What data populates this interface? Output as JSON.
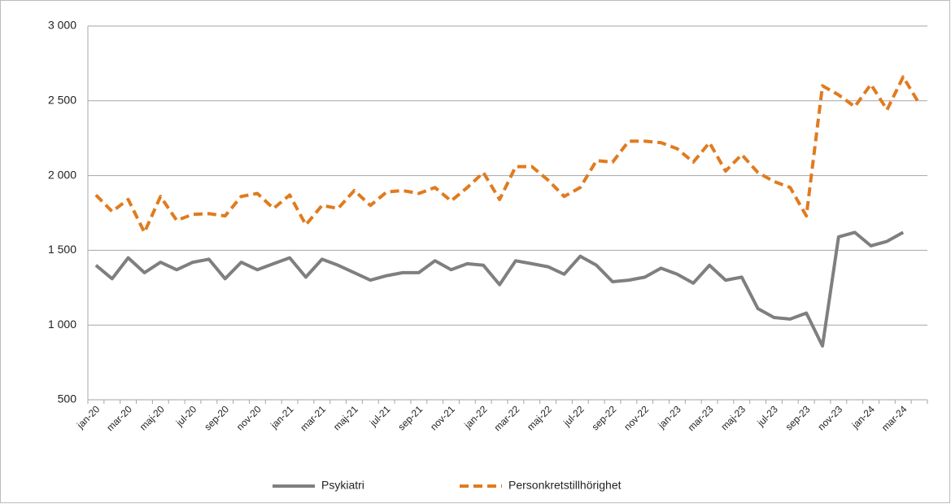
{
  "chart_data": {
    "type": "line",
    "categories": [
      "jan-20",
      null,
      "mar-20",
      null,
      "maj-20",
      null,
      "jul-20",
      null,
      "sep-20",
      null,
      "nov-20",
      null,
      "jan-21",
      null,
      "mar-21",
      null,
      "maj-21",
      null,
      "jul-21",
      null,
      "sep-21",
      null,
      "nov-21",
      null,
      "jan-22",
      null,
      "mar-22",
      null,
      "maj-22",
      null,
      "jul-22",
      null,
      "sep-22",
      null,
      "nov-22",
      null,
      "jan-23",
      null,
      "mar-23",
      null,
      "maj-23",
      null,
      "jul-23",
      null,
      "sep-23",
      null,
      "nov-23",
      null,
      "jan-24",
      null,
      "mar-24",
      null
    ],
    "series": [
      {
        "name": "Psykiatri",
        "color": "#7f7f7f",
        "dashed": false,
        "values": [
          1400,
          1310,
          1450,
          1350,
          1420,
          1370,
          1420,
          1440,
          1310,
          1420,
          1370,
          1410,
          1450,
          1320,
          1440,
          1400,
          1350,
          1300,
          1330,
          1350,
          1350,
          1430,
          1370,
          1410,
          1400,
          1270,
          1430,
          1410,
          1390,
          1340,
          1460,
          1400,
          1290,
          1300,
          1320,
          1380,
          1340,
          1280,
          1400,
          1300,
          1320,
          1110,
          1050,
          1040,
          1080,
          860,
          1590,
          1620,
          1530,
          1560,
          1620,
          null
        ]
      },
      {
        "name": "Personkretstillhörighet",
        "color": "#e07b1f",
        "dashed": true,
        "values": [
          1870,
          1760,
          1840,
          1620,
          1860,
          1700,
          1740,
          1745,
          1730,
          1860,
          1880,
          1780,
          1870,
          1670,
          1800,
          1780,
          1900,
          1800,
          1890,
          1900,
          1880,
          1920,
          1830,
          1920,
          2020,
          1840,
          2060,
          2060,
          1970,
          1860,
          1920,
          2100,
          2090,
          2230,
          2230,
          2220,
          2180,
          2090,
          2220,
          2030,
          2140,
          2020,
          1960,
          1920,
          1730,
          2600,
          2540,
          2460,
          2610,
          2440,
          2660,
          2480
        ]
      }
    ],
    "ylim": [
      500,
      3000
    ],
    "yticks": [
      {
        "value": 500,
        "label": "500"
      },
      {
        "value": 1000,
        "label": "1 000"
      },
      {
        "value": 1500,
        "label": "1 500"
      },
      {
        "value": 2000,
        "label": "2 000"
      },
      {
        "value": 2500,
        "label": "2 500"
      },
      {
        "value": 3000,
        "label": "3 000"
      }
    ],
    "grid": true,
    "legend": "bottom"
  }
}
